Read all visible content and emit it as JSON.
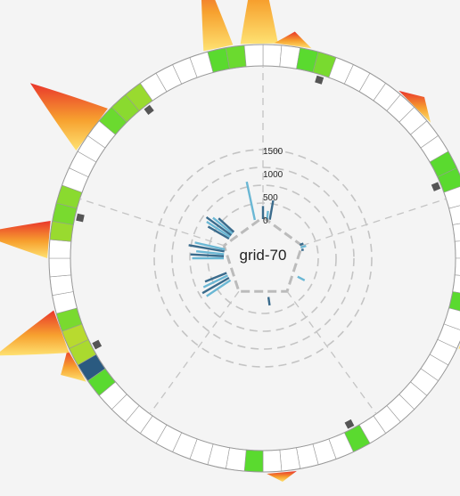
{
  "chart_data": {
    "type": "radial",
    "center_label": "grid-70",
    "radial_axis": {
      "ticks": [
        0,
        500,
        1000,
        1500
      ]
    },
    "ring_segments": 72,
    "colors": {
      "ring_stroke": "#999999",
      "grid_dash": "#c4c4c4",
      "bar_dark": "#3a6b8c",
      "bar_light": "#6ab7d4",
      "marker": "#555555",
      "heat_low": "#ffe066",
      "heat_high": "#e8251a"
    },
    "ring_cells": [
      {
        "index": 2,
        "level": 0.55
      },
      {
        "index": 3,
        "level": 0.65
      },
      {
        "index": 12,
        "level": 0.55
      },
      {
        "index": 13,
        "level": 0.55
      },
      {
        "index": 20,
        "level": 0.55
      },
      {
        "index": 30,
        "level": 0.55
      },
      {
        "index": 36,
        "level": 0.55
      },
      {
        "index": 46,
        "level": 0.55
      },
      {
        "index": 47,
        "level": 0.7
      },
      {
        "index": 48,
        "level": 0.8
      },
      {
        "index": 49,
        "level": 0.85
      },
      {
        "index": 50,
        "level": 0.65
      },
      {
        "index": 55,
        "level": 0.75
      },
      {
        "index": 56,
        "level": 0.65
      },
      {
        "index": 57,
        "level": 0.7
      },
      {
        "index": 62,
        "level": 0.6
      },
      {
        "index": 63,
        "level": 0.7
      },
      {
        "index": 64,
        "level": 0.75
      },
      {
        "index": 69,
        "level": 0.55
      },
      {
        "index": 70,
        "level": 0.6
      }
    ],
    "highlight_cells": [
      {
        "index": 47,
        "color": "#2a5a80"
      }
    ],
    "markers": [
      3,
      13,
      30,
      48,
      56,
      64
    ],
    "outer_density": [
      {
        "angle": 348,
        "width": 4,
        "height": 95
      },
      {
        "angle": 359,
        "width": 5,
        "height": 105
      },
      {
        "angle": 8,
        "width": 5,
        "height": 15
      },
      {
        "angle": 45,
        "width": 6,
        "height": 14
      },
      {
        "angle": 110,
        "width": 5,
        "height": 14
      },
      {
        "angle": 175,
        "width": 4,
        "height": 10
      },
      {
        "angle": 240,
        "width": 5,
        "height": 20
      },
      {
        "angle": 250,
        "width": 6,
        "height": 78
      },
      {
        "angle": 275,
        "width": 5,
        "height": 80
      },
      {
        "angle": 307,
        "width": 7,
        "height": 85
      }
    ],
    "inner_bars": [
      {
        "angle": 0,
        "value": 320
      },
      {
        "angle": 6,
        "value": 220
      },
      {
        "angle": 10,
        "value": 460
      },
      {
        "angle": 348,
        "value": 880
      },
      {
        "angle": 70,
        "value": 120
      },
      {
        "angle": 74,
        "value": 160
      },
      {
        "angle": 78,
        "value": 90
      },
      {
        "angle": 118,
        "value": 210
      },
      {
        "angle": 172,
        "value": 220
      },
      {
        "angle": 270,
        "value": 720
      },
      {
        "angle": 273,
        "value": 760
      },
      {
        "angle": 276,
        "value": 640
      },
      {
        "angle": 280,
        "value": 820
      },
      {
        "angle": 283,
        "value": 700
      },
      {
        "angle": 300,
        "value": 560
      },
      {
        "angle": 303,
        "value": 640
      },
      {
        "angle": 306,
        "value": 700
      },
      {
        "angle": 309,
        "value": 580
      },
      {
        "angle": 312,
        "value": 480
      },
      {
        "angle": 236,
        "value": 660
      },
      {
        "angle": 240,
        "value": 700
      },
      {
        "angle": 244,
        "value": 620
      },
      {
        "angle": 248,
        "value": 540
      }
    ]
  }
}
